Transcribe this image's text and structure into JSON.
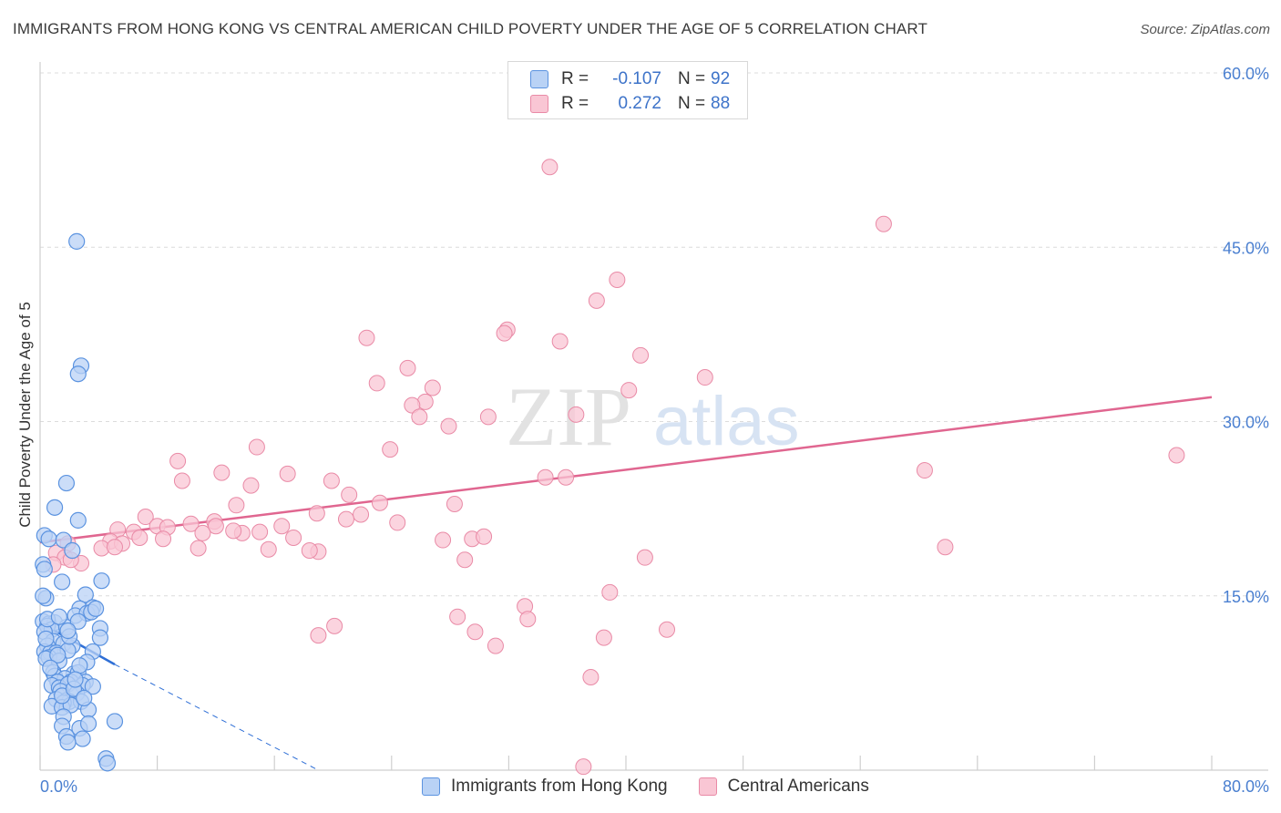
{
  "title": "IMMIGRANTS FROM HONG KONG VS CENTRAL AMERICAN CHILD POVERTY UNDER THE AGE OF 5 CORRELATION CHART",
  "source": "Source: ZipAtlas.com",
  "watermark": {
    "zip": "ZIP",
    "atlas": "atlas"
  },
  "legend": {
    "rows": [
      {
        "r_label": "R =",
        "r_value": "-0.107",
        "n_label": "N =",
        "n_value": "92"
      },
      {
        "r_label": "R =",
        "r_value": "0.272",
        "n_label": "N =",
        "n_value": "88"
      }
    ]
  },
  "bottom_legend": [
    "Immigrants from Hong Kong",
    "Central Americans"
  ],
  "colors": {
    "blue_fill": "#b9d2f5",
    "blue_stroke": "#5b93e0",
    "blue_line": "#2f6fd6",
    "pink_fill": "#f9c6d4",
    "pink_stroke": "#e98aa6",
    "pink_line": "#e06690",
    "axis_text": "#4a7fd0",
    "grid": "#dcdcdc"
  },
  "chart_data": {
    "type": "scatter",
    "title": "IMMIGRANTS FROM HONG KONG VS CENTRAL AMERICAN CHILD POVERTY UNDER THE AGE OF 5 CORRELATION CHART",
    "xlabel": "",
    "ylabel": "Child Poverty Under the Age of 5",
    "xlim": [
      0,
      80
    ],
    "ylim": [
      0,
      60
    ],
    "x_tick_labels": [
      "0.0%",
      "80.0%"
    ],
    "y_ticks": [
      15,
      30,
      45,
      60
    ],
    "y_tick_labels": [
      "15.0%",
      "30.0%",
      "45.0%",
      "60.0%"
    ],
    "grid": true,
    "legend_position": "top-center",
    "series": [
      {
        "name": "Immigrants from Hong Kong",
        "r": -0.107,
        "n": 92,
        "trend": {
          "x": [
            0,
            5.1
          ],
          "y": [
            12.7,
            9.1
          ],
          "dashed_to": [
            19.0,
            0
          ]
        },
        "points": [
          [
            2.5,
            45.5
          ],
          [
            2.8,
            34.8
          ],
          [
            2.6,
            34.1
          ],
          [
            1.8,
            24.7
          ],
          [
            1.0,
            22.6
          ],
          [
            2.6,
            21.5
          ],
          [
            0.3,
            20.2
          ],
          [
            0.6,
            19.9
          ],
          [
            1.6,
            19.8
          ],
          [
            2.2,
            18.9
          ],
          [
            0.2,
            17.7
          ],
          [
            0.3,
            17.3
          ],
          [
            1.5,
            16.2
          ],
          [
            4.2,
            16.3
          ],
          [
            0.4,
            14.8
          ],
          [
            3.1,
            15.1
          ],
          [
            2.7,
            13.9
          ],
          [
            3.6,
            14.0
          ],
          [
            2.4,
            13.3
          ],
          [
            3.2,
            13.5
          ],
          [
            3.5,
            13.6
          ],
          [
            0.2,
            12.8
          ],
          [
            0.6,
            12.6
          ],
          [
            1.0,
            12.7
          ],
          [
            0.5,
            12.4
          ],
          [
            0.8,
            12.1
          ],
          [
            1.8,
            12.3
          ],
          [
            2.6,
            12.8
          ],
          [
            0.3,
            11.9
          ],
          [
            4.1,
            12.2
          ],
          [
            0.9,
            11.1
          ],
          [
            1.6,
            10.9
          ],
          [
            2.2,
            10.7
          ],
          [
            0.5,
            10.7
          ],
          [
            0.3,
            10.2
          ],
          [
            0.7,
            10.1
          ],
          [
            1.1,
            10.1
          ],
          [
            1.9,
            10.3
          ],
          [
            3.6,
            10.2
          ],
          [
            4.1,
            11.4
          ],
          [
            0.6,
            9.7
          ],
          [
            0.4,
            9.6
          ],
          [
            1.3,
            9.4
          ],
          [
            3.2,
            9.3
          ],
          [
            0.9,
            8.4
          ],
          [
            2.3,
            8.3
          ],
          [
            2.6,
            8.4
          ],
          [
            1.0,
            8.1
          ],
          [
            1.7,
            7.9
          ],
          [
            1.2,
            7.6
          ],
          [
            2.1,
            7.6
          ],
          [
            3.1,
            7.6
          ],
          [
            0.8,
            7.3
          ],
          [
            1.3,
            7.1
          ],
          [
            1.9,
            7.4
          ],
          [
            2.9,
            7.3
          ],
          [
            3.6,
            7.2
          ],
          [
            1.4,
            6.8
          ],
          [
            2.5,
            6.6
          ],
          [
            1.1,
            6.1
          ],
          [
            1.8,
            6.0
          ],
          [
            2.0,
            5.9
          ],
          [
            1.6,
            5.8
          ],
          [
            2.8,
            5.9
          ],
          [
            0.8,
            5.5
          ],
          [
            1.5,
            5.4
          ],
          [
            2.1,
            5.6
          ],
          [
            3.3,
            5.2
          ],
          [
            1.6,
            4.6
          ],
          [
            1.5,
            3.8
          ],
          [
            2.7,
            3.6
          ],
          [
            3.3,
            4.0
          ],
          [
            5.1,
            4.2
          ],
          [
            1.8,
            2.9
          ],
          [
            2.9,
            2.7
          ],
          [
            1.9,
            2.4
          ],
          [
            4.5,
            1.0
          ],
          [
            4.6,
            0.6
          ],
          [
            0.2,
            15.0
          ],
          [
            0.5,
            13.0
          ],
          [
            1.3,
            13.2
          ],
          [
            2.0,
            11.5
          ],
          [
            1.2,
            9.9
          ],
          [
            2.7,
            9.0
          ],
          [
            0.7,
            8.8
          ],
          [
            1.5,
            6.4
          ],
          [
            2.3,
            7.0
          ],
          [
            3.0,
            6.2
          ],
          [
            0.4,
            11.3
          ],
          [
            1.9,
            12.0
          ],
          [
            2.4,
            7.8
          ],
          [
            3.8,
            13.9
          ]
        ]
      },
      {
        "name": "Central Americans",
        "r": 0.272,
        "n": 88,
        "trend": {
          "x": [
            0,
            80
          ],
          "y": [
            19.6,
            32.1
          ]
        },
        "points": [
          [
            34.8,
            51.9
          ],
          [
            57.6,
            47.0
          ],
          [
            39.4,
            42.2
          ],
          [
            38.0,
            40.4
          ],
          [
            31.9,
            37.9
          ],
          [
            31.7,
            37.6
          ],
          [
            22.3,
            37.2
          ],
          [
            35.5,
            36.9
          ],
          [
            41.0,
            35.7
          ],
          [
            25.1,
            34.6
          ],
          [
            45.4,
            33.8
          ],
          [
            23.0,
            33.3
          ],
          [
            26.8,
            32.9
          ],
          [
            40.2,
            32.7
          ],
          [
            26.3,
            31.7
          ],
          [
            25.4,
            31.4
          ],
          [
            25.9,
            30.4
          ],
          [
            36.6,
            30.6
          ],
          [
            30.6,
            30.4
          ],
          [
            27.9,
            29.6
          ],
          [
            23.9,
            27.6
          ],
          [
            14.8,
            27.8
          ],
          [
            9.4,
            26.6
          ],
          [
            77.6,
            27.1
          ],
          [
            60.4,
            25.8
          ],
          [
            12.4,
            25.6
          ],
          [
            16.9,
            25.5
          ],
          [
            34.5,
            25.2
          ],
          [
            35.9,
            25.2
          ],
          [
            9.7,
            24.9
          ],
          [
            14.4,
            24.5
          ],
          [
            19.9,
            24.9
          ],
          [
            21.1,
            23.7
          ],
          [
            13.4,
            22.8
          ],
          [
            23.2,
            23.0
          ],
          [
            28.3,
            22.9
          ],
          [
            7.2,
            21.8
          ],
          [
            18.9,
            22.1
          ],
          [
            21.9,
            22.0
          ],
          [
            20.9,
            21.6
          ],
          [
            11.9,
            21.4
          ],
          [
            10.3,
            21.2
          ],
          [
            12.0,
            21.0
          ],
          [
            8.0,
            21.0
          ],
          [
            24.4,
            21.3
          ],
          [
            16.5,
            21.0
          ],
          [
            5.3,
            20.7
          ],
          [
            8.7,
            20.9
          ],
          [
            15.0,
            20.5
          ],
          [
            6.4,
            20.5
          ],
          [
            13.8,
            20.4
          ],
          [
            11.1,
            20.4
          ],
          [
            6.8,
            20.0
          ],
          [
            8.4,
            19.9
          ],
          [
            17.3,
            20.0
          ],
          [
            27.5,
            19.8
          ],
          [
            29.5,
            19.9
          ],
          [
            30.3,
            20.1
          ],
          [
            4.8,
            19.7
          ],
          [
            5.6,
            19.5
          ],
          [
            1.9,
            19.5
          ],
          [
            4.2,
            19.1
          ],
          [
            10.8,
            19.1
          ],
          [
            15.6,
            19.0
          ],
          [
            19.0,
            18.8
          ],
          [
            18.4,
            18.9
          ],
          [
            1.1,
            18.7
          ],
          [
            1.7,
            18.3
          ],
          [
            2.8,
            17.8
          ],
          [
            0.9,
            17.7
          ],
          [
            29.0,
            18.1
          ],
          [
            41.3,
            18.3
          ],
          [
            61.8,
            19.2
          ],
          [
            38.9,
            15.3
          ],
          [
            33.1,
            14.1
          ],
          [
            28.5,
            13.2
          ],
          [
            33.3,
            13.0
          ],
          [
            20.1,
            12.4
          ],
          [
            29.7,
            11.9
          ],
          [
            42.8,
            12.1
          ],
          [
            19.0,
            11.6
          ],
          [
            38.5,
            11.4
          ],
          [
            31.1,
            10.7
          ],
          [
            37.6,
            8.0
          ],
          [
            37.1,
            0.3
          ],
          [
            5.1,
            19.2
          ],
          [
            2.1,
            18.1
          ],
          [
            13.2,
            20.6
          ]
        ]
      }
    ]
  }
}
